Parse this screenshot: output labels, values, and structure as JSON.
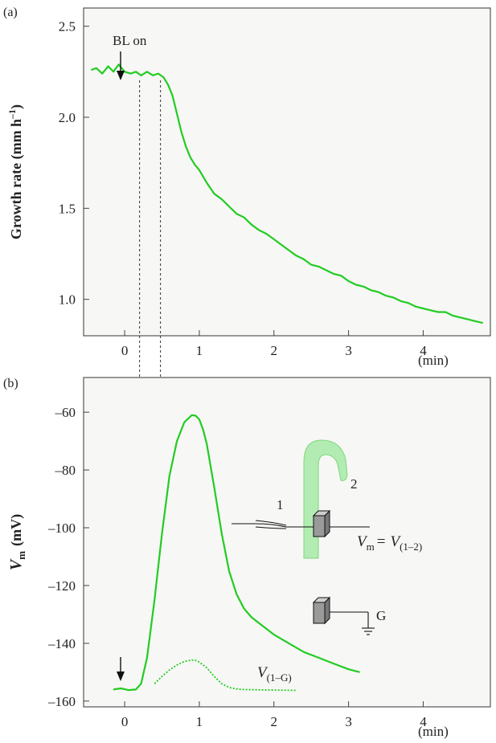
{
  "chart_data": [
    {
      "type": "line",
      "panel_label": "(a)",
      "ylabel": "Growth rate (mm h",
      "ylabel_sup": "–1",
      "ylabel_close": ")",
      "xlabel": "(min)",
      "xlim": [
        -0.55,
        4.9
      ],
      "ylim": [
        0.8,
        2.6
      ],
      "xticks": [
        0,
        1,
        2,
        3,
        4
      ],
      "xtick_labels": [
        "0",
        "1",
        "2",
        "3",
        "4"
      ],
      "yticks": [
        1.0,
        1.5,
        2.0,
        2.5
      ],
      "ytick_labels": [
        "1.0",
        "1.5",
        "2.0",
        "2.5"
      ],
      "series": [
        {
          "color": "#22cc22",
          "style": "solid",
          "x": [
            -0.45,
            -0.38,
            -0.3,
            -0.22,
            -0.15,
            -0.08,
            0.0,
            0.08,
            0.15,
            0.22,
            0.3,
            0.38,
            0.45,
            0.52,
            0.58,
            0.64,
            0.7,
            0.76,
            0.82,
            0.88,
            0.94,
            1.0,
            1.1,
            1.2,
            1.3,
            1.4,
            1.5,
            1.6,
            1.7,
            1.8,
            1.9,
            2.0,
            2.1,
            2.2,
            2.3,
            2.4,
            2.5,
            2.6,
            2.7,
            2.8,
            2.9,
            3.0,
            3.1,
            3.2,
            3.3,
            3.4,
            3.5,
            3.6,
            3.7,
            3.8,
            3.9,
            4.0,
            4.1,
            4.2,
            4.3,
            4.4,
            4.5,
            4.6,
            4.7,
            4.8
          ],
          "y": [
            2.26,
            2.27,
            2.24,
            2.28,
            2.25,
            2.29,
            2.25,
            2.24,
            2.25,
            2.23,
            2.25,
            2.23,
            2.24,
            2.22,
            2.18,
            2.12,
            2.02,
            1.92,
            1.84,
            1.78,
            1.74,
            1.71,
            1.64,
            1.58,
            1.55,
            1.51,
            1.47,
            1.45,
            1.41,
            1.38,
            1.36,
            1.33,
            1.3,
            1.27,
            1.24,
            1.22,
            1.19,
            1.18,
            1.16,
            1.14,
            1.13,
            1.1,
            1.08,
            1.07,
            1.05,
            1.04,
            1.02,
            1.01,
            0.99,
            0.98,
            0.96,
            0.95,
            0.94,
            0.93,
            0.93,
            0.91,
            0.9,
            0.89,
            0.88,
            0.87
          ]
        }
      ],
      "annotations": [
        {
          "text": "BL on",
          "x": 0.0
        }
      ],
      "vlines": [
        0.2,
        0.48
      ]
    },
    {
      "type": "line",
      "panel_label": "(b)",
      "ylabel_main": "V",
      "ylabel_sub": "m",
      "ylabel_unit": "(mV)",
      "xlabel": "(min)",
      "xlim": [
        -0.55,
        4.9
      ],
      "ylim": [
        -162,
        -48
      ],
      "xticks": [
        0,
        1,
        2,
        3,
        4
      ],
      "xtick_labels": [
        "0",
        "1",
        "2",
        "3",
        "4"
      ],
      "yticks": [
        -160,
        -140,
        -120,
        -100,
        -80,
        -60
      ],
      "ytick_labels": [
        "–160",
        "–140",
        "–120",
        "–100",
        "–80",
        "–60"
      ],
      "series": [
        {
          "name_main": "V",
          "name_sub": "(1–2)",
          "color": "#22cc22",
          "style": "solid",
          "x": [
            -0.15,
            -0.05,
            0.05,
            0.15,
            0.22,
            0.3,
            0.4,
            0.5,
            0.6,
            0.7,
            0.8,
            0.9,
            0.95,
            1.0,
            1.05,
            1.1,
            1.2,
            1.3,
            1.4,
            1.5,
            1.6,
            1.7,
            1.8,
            1.9,
            2.0,
            2.2,
            2.4,
            2.6,
            2.8,
            3.0,
            3.15
          ],
          "y": [
            -156,
            -155.6,
            -156.2,
            -156,
            -154,
            -145,
            -125,
            -102,
            -82,
            -70,
            -63.5,
            -61,
            -61.2,
            -62.5,
            -66,
            -71,
            -86,
            -102,
            -115,
            -123,
            -128,
            -131,
            -133,
            -135,
            -137,
            -140,
            -143,
            -145,
            -147,
            -149,
            -150
          ]
        },
        {
          "name_main": "V",
          "name_sub": "(1–G)",
          "color": "#22cc22",
          "style": "dotted",
          "x": [
            0.4,
            0.5,
            0.6,
            0.7,
            0.8,
            0.9,
            0.95,
            1.0,
            1.1,
            1.2,
            1.3,
            1.4,
            1.5,
            1.6,
            1.8,
            2.0,
            2.3
          ],
          "y": [
            -154,
            -151.5,
            -149.2,
            -147.5,
            -146.3,
            -145.8,
            -145.9,
            -146.5,
            -148.5,
            -151.5,
            -154,
            -155.3,
            -155.8,
            -156,
            -156.1,
            -156.2,
            -156.3
          ]
        }
      ],
      "vlines": [
        0.2,
        0.48
      ]
    }
  ],
  "inset": {
    "electrode1_label": "1",
    "electrode2_label": "2",
    "equation_main": "V",
    "equation_sub": "m",
    "equation_eq": "=",
    "equation_rhs": "V",
    "equation_rhs_sub": "(1–2)",
    "ground_label": "G",
    "hypha_color": "#9be89b"
  }
}
